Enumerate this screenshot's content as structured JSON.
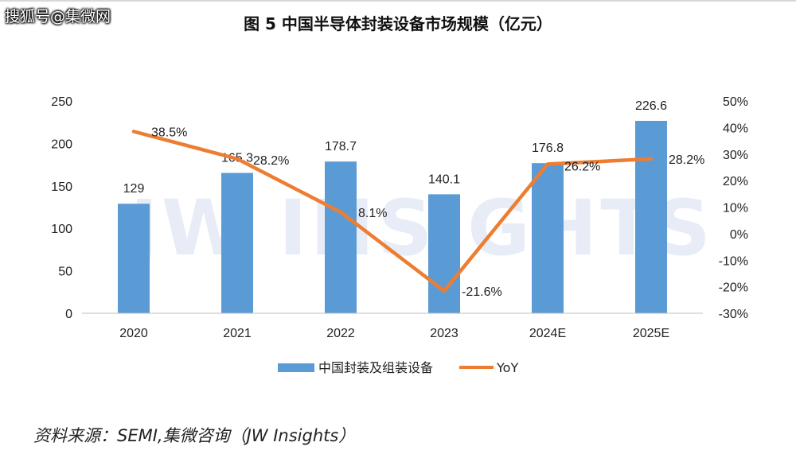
{
  "page": {
    "title": "图 5  中国半导体封装设备市场规模（亿元）",
    "watermark_corner": "搜狐号@集微网",
    "watermark_center": "JW INSIGHTS",
    "source": "资料来源：SEMI,集微咨询（JW Insights）"
  },
  "colors": {
    "bar": "#5b9bd5",
    "line": "#ed7d31"
  },
  "chart_data": {
    "type": "bar",
    "title": "图 5  中国半导体封装设备市场规模（亿元）",
    "categories": [
      "2020",
      "2021",
      "2022",
      "2023",
      "2024E",
      "2025E"
    ],
    "series": [
      {
        "name": "中国封装及组装设备",
        "type": "bar",
        "axis": "left",
        "values": [
          129,
          165.3,
          178.7,
          140.1,
          176.8,
          226.6
        ],
        "labels": [
          "129",
          "165.3",
          "178.7",
          "140.1",
          "176.8",
          "226.6"
        ]
      },
      {
        "name": "YoY",
        "type": "line",
        "axis": "right",
        "values": [
          38.5,
          28.2,
          8.1,
          -21.6,
          26.2,
          28.2
        ],
        "labels": [
          "38.5%",
          "28.2%",
          "8.1%",
          "-21.6%",
          "26.2%",
          "28.2%"
        ]
      }
    ],
    "y_left": {
      "min": 0,
      "max": 250,
      "ticks": [
        "0",
        "50",
        "100",
        "150",
        "200",
        "250"
      ]
    },
    "y_right": {
      "min": -30,
      "max": 50,
      "ticks": [
        "-30%",
        "-20%",
        "-10%",
        "0%",
        "10%",
        "20%",
        "30%",
        "40%",
        "50%"
      ]
    },
    "grid": false,
    "legend_position": "bottom"
  }
}
